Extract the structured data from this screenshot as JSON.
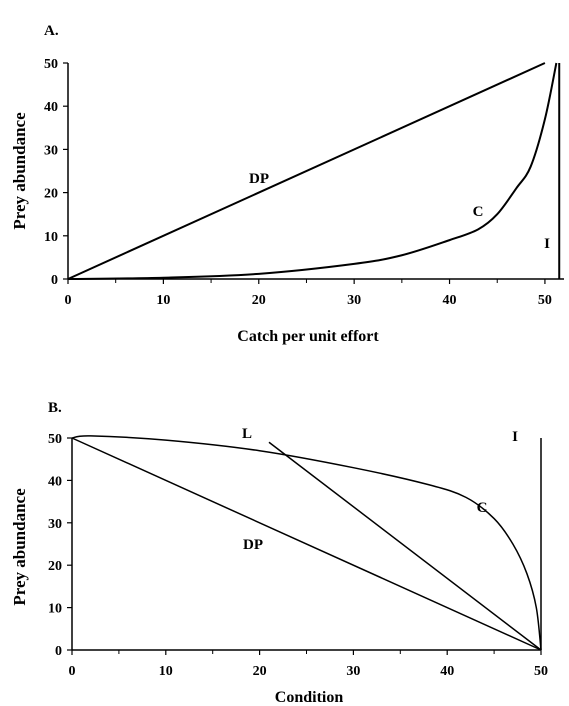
{
  "chart_data": [
    {
      "panel_label": "A.",
      "type": "line",
      "xlabel": "Catch per unit effort",
      "ylabel": "Prey abundance",
      "xlim": [
        0,
        52
      ],
      "ylim": [
        0,
        50
      ],
      "x_ticks": [
        0,
        10,
        20,
        30,
        40,
        50
      ],
      "y_ticks": [
        0,
        10,
        20,
        30,
        40,
        50
      ],
      "grid": false,
      "series": [
        {
          "name": "DP",
          "points": [
            [
              0,
              0
            ],
            [
              50,
              50
            ]
          ]
        },
        {
          "name": "C",
          "points": [
            [
              0,
              0
            ],
            [
              10,
              0.3
            ],
            [
              20,
              1.2
            ],
            [
              30,
              3.5
            ],
            [
              35,
              5.5
            ],
            [
              40,
              9
            ],
            [
              43,
              11.5
            ],
            [
              45,
              15
            ],
            [
              47,
              21
            ],
            [
              48.5,
              26
            ],
            [
              50,
              37
            ],
            [
              51.2,
              50
            ]
          ]
        },
        {
          "name": "I",
          "points": [
            [
              51.5,
              0
            ],
            [
              51.5,
              50
            ]
          ]
        }
      ]
    },
    {
      "panel_label": "B.",
      "type": "line",
      "xlabel": "Condition",
      "ylabel": "Prey abundance",
      "xlim": [
        0,
        50
      ],
      "ylim": [
        0,
        50
      ],
      "x_ticks": [
        0,
        10,
        20,
        30,
        40,
        50
      ],
      "y_ticks": [
        0,
        10,
        20,
        30,
        40,
        50
      ],
      "grid": false,
      "series": [
        {
          "name": "DP",
          "points": [
            [
              0,
              50
            ],
            [
              50,
              0
            ]
          ]
        },
        {
          "name": "L",
          "points": [
            [
              21,
              49
            ],
            [
              50,
              0
            ]
          ]
        },
        {
          "name": "C",
          "points": [
            [
              0,
              50
            ],
            [
              2,
              50.5
            ],
            [
              10,
              49.5
            ],
            [
              20,
              47
            ],
            [
              30,
              43
            ],
            [
              38,
              39
            ],
            [
              42,
              36
            ],
            [
              45,
              31
            ],
            [
              47,
              25
            ],
            [
              48.5,
              18
            ],
            [
              49.5,
              10
            ],
            [
              50,
              0
            ]
          ]
        },
        {
          "name": "I",
          "points": [
            [
              50,
              0
            ],
            [
              50,
              50
            ]
          ]
        }
      ]
    }
  ]
}
